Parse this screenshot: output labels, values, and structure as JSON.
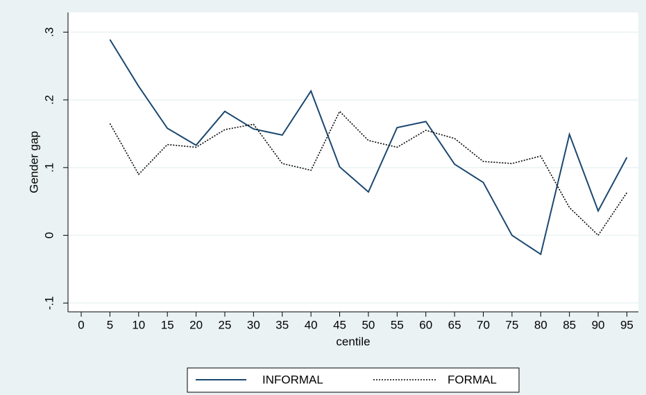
{
  "chart_data": {
    "type": "line",
    "xlabel": "centile",
    "ylabel": "Gender gap",
    "x": [
      5,
      10,
      15,
      20,
      25,
      30,
      35,
      40,
      45,
      50,
      55,
      60,
      65,
      70,
      75,
      80,
      85,
      90,
      95
    ],
    "series": [
      {
        "name": "INFORMAL",
        "color": "#1a476f",
        "dash": "solid",
        "values": [
          0.289,
          0.22,
          0.158,
          0.133,
          0.183,
          0.157,
          0.148,
          0.213,
          0.101,
          0.064,
          0.159,
          0.168,
          0.105,
          0.078,
          0.0,
          -0.028,
          0.149,
          0.036,
          0.115
        ]
      },
      {
        "name": "FORMAL",
        "color": "#000000",
        "dash": "dotted",
        "values": [
          0.165,
          0.09,
          0.134,
          0.13,
          0.156,
          0.164,
          0.106,
          0.096,
          0.183,
          0.14,
          0.13,
          0.155,
          0.143,
          0.109,
          0.106,
          0.117,
          0.041,
          0.0,
          0.063
        ]
      }
    ],
    "xlim": [
      -2.3,
      97
    ],
    "ylim": [
      -0.113,
      0.329
    ],
    "xticks": [
      0,
      5,
      10,
      15,
      20,
      25,
      30,
      35,
      40,
      45,
      50,
      55,
      60,
      65,
      70,
      75,
      80,
      85,
      90,
      95
    ],
    "yticks": [
      {
        "value": -0.1,
        "label": "-.1"
      },
      0,
      {
        "value": 0.1,
        "label": ".1"
      },
      {
        "value": 0.2,
        "label": ".2"
      },
      {
        "value": 0.3,
        "label": ".3"
      }
    ],
    "grid": true,
    "legend": "bottom"
  }
}
